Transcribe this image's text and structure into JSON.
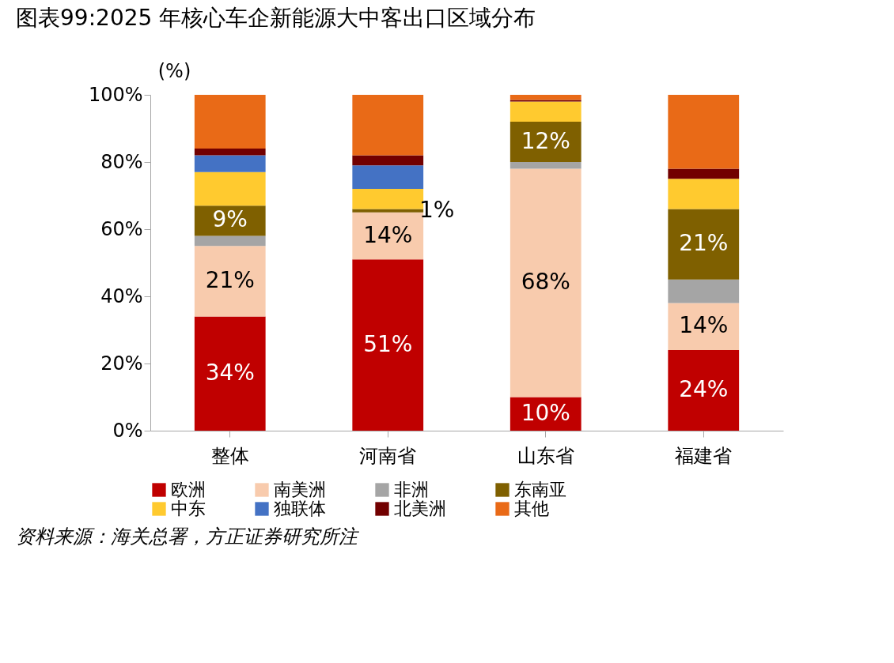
{
  "chart_data": {
    "type": "bar",
    "stacked": true,
    "title": "图表99:2025 年核心车企新能源大中客出口区域分布",
    "ylabel": "(%)",
    "categories": [
      "整体",
      "河南省",
      "山东省",
      "福建省"
    ],
    "series": [
      {
        "name": "欧洲",
        "color": "#c00000",
        "values": [
          34,
          51,
          10,
          24
        ],
        "value_labels": [
          "34%",
          "51%",
          "10%",
          "24%"
        ]
      },
      {
        "name": "南美洲",
        "color": "#f8cbad",
        "values": [
          21,
          14,
          68,
          14
        ],
        "value_labels": [
          "21%",
          "14%",
          "68%",
          "14%"
        ]
      },
      {
        "name": "非洲",
        "color": "#a5a5a5",
        "values": [
          3,
          0,
          2,
          7
        ]
      },
      {
        "name": "东南亚",
        "color": "#7f6000",
        "values": [
          9,
          1,
          12,
          21
        ],
        "value_labels": [
          "9%",
          "1%",
          "12%",
          "21%"
        ]
      },
      {
        "name": "中东",
        "color": "#ffca2f",
        "values": [
          10,
          6,
          6,
          9
        ]
      },
      {
        "name": "独联体",
        "color": "#4472c4",
        "values": [
          5,
          7,
          0,
          0
        ]
      },
      {
        "name": "北美洲",
        "color": "#720000",
        "values": [
          2,
          3,
          0.5,
          3
        ]
      },
      {
        "name": "其他",
        "color": "#e96a17",
        "values": [
          16,
          18,
          1.5,
          22
        ]
      }
    ],
    "ylim": [
      0,
      100
    ],
    "yticks": [
      {
        "value": 0,
        "label": "0%"
      },
      {
        "value": 20,
        "label": "20%"
      },
      {
        "value": 40,
        "label": "40%"
      },
      {
        "value": 60,
        "label": "60%"
      },
      {
        "value": 80,
        "label": "80%"
      },
      {
        "value": 100,
        "label": "100%"
      }
    ],
    "grid": false,
    "legend": "bottom",
    "annotations": [
      "资料来源：海关总署，方正证券研究所注"
    ]
  }
}
